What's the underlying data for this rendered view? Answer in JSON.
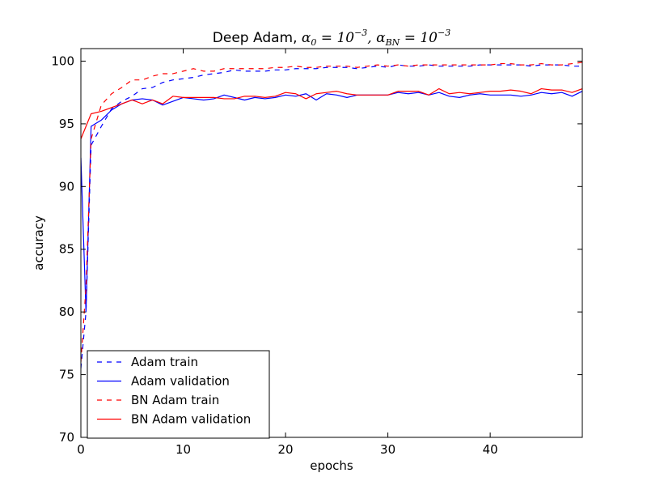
{
  "chart_data": {
    "type": "line",
    "title": {
      "text": "Deep Adam, ",
      "alpha_sym": "α",
      "sub0": "0",
      "eq1": " = 10",
      "sup1": "−3",
      "sep": ",  ",
      "alpha_sym2": "α",
      "subBN": "BN",
      "eq2": " = 10",
      "sup2": "−3"
    },
    "xlabel": "epochs",
    "ylabel": "accuracy",
    "xlim": [
      0,
      49
    ],
    "ylim": [
      70,
      101
    ],
    "xticks": [
      0,
      10,
      20,
      30,
      40
    ],
    "yticks": [
      70,
      75,
      80,
      85,
      90,
      95,
      100
    ],
    "grid": false,
    "legend_position": "bottom-left",
    "series": [
      {
        "name": "Adam train",
        "color": "#0000ff",
        "dash": "dashed",
        "x": [
          0,
          0.5,
          1,
          2,
          3,
          4,
          5,
          6,
          7,
          8,
          9,
          10,
          11,
          12,
          13,
          14,
          15,
          16,
          17,
          18,
          19,
          20,
          21,
          22,
          23,
          24,
          25,
          26,
          27,
          28,
          29,
          30,
          31,
          32,
          33,
          34,
          35,
          36,
          37,
          38,
          39,
          40,
          41,
          42,
          43,
          44,
          45,
          46,
          47,
          48,
          49
        ],
        "values": [
          75.5,
          80,
          93.3,
          94.8,
          96.2,
          96.8,
          97.2,
          97.8,
          97.9,
          98.3,
          98.5,
          98.6,
          98.7,
          98.9,
          99.0,
          99.1,
          99.3,
          99.2,
          99.2,
          99.2,
          99.3,
          99.3,
          99.4,
          99.4,
          99.4,
          99.5,
          99.5,
          99.5,
          99.4,
          99.5,
          99.6,
          99.5,
          99.7,
          99.6,
          99.6,
          99.7,
          99.6,
          99.6,
          99.6,
          99.6,
          99.7,
          99.7,
          99.7,
          99.7,
          99.7,
          99.6,
          99.7,
          99.7,
          99.7,
          99.6,
          99.6
        ]
      },
      {
        "name": "Adam validation",
        "color": "#0000ff",
        "dash": "solid",
        "x": [
          0,
          0.5,
          1,
          2,
          3,
          4,
          5,
          6,
          7,
          8,
          9,
          10,
          11,
          12,
          13,
          14,
          15,
          16,
          17,
          18,
          19,
          20,
          21,
          22,
          23,
          24,
          25,
          26,
          27,
          28,
          29,
          30,
          31,
          32,
          33,
          34,
          35,
          36,
          37,
          38,
          39,
          40,
          41,
          42,
          43,
          44,
          45,
          46,
          47,
          48,
          49
        ],
        "values": [
          92.3,
          80,
          94.8,
          95.3,
          96.1,
          96.6,
          96.9,
          97.0,
          96.9,
          96.5,
          96.8,
          97.1,
          97.0,
          96.9,
          97.0,
          97.3,
          97.1,
          96.9,
          97.1,
          97.0,
          97.1,
          97.3,
          97.2,
          97.4,
          96.9,
          97.4,
          97.3,
          97.1,
          97.3,
          97.3,
          97.3,
          97.3,
          97.5,
          97.4,
          97.5,
          97.3,
          97.5,
          97.2,
          97.1,
          97.3,
          97.4,
          97.3,
          97.3,
          97.3,
          97.2,
          97.3,
          97.5,
          97.4,
          97.5,
          97.2,
          97.6
        ]
      },
      {
        "name": "BN Adam train",
        "color": "#ff0000",
        "dash": "dashed",
        "x": [
          0,
          0.5,
          1,
          2,
          3,
          4,
          5,
          6,
          7,
          8,
          9,
          10,
          11,
          12,
          13,
          14,
          15,
          16,
          17,
          18,
          19,
          20,
          21,
          22,
          23,
          24,
          25,
          26,
          27,
          28,
          29,
          30,
          31,
          32,
          33,
          34,
          35,
          36,
          37,
          38,
          39,
          40,
          41,
          42,
          43,
          44,
          45,
          46,
          47,
          48,
          49
        ],
        "values": [
          76,
          82,
          93.8,
          96.5,
          97.4,
          97.9,
          98.5,
          98.5,
          98.8,
          99.0,
          99.0,
          99.2,
          99.4,
          99.2,
          99.2,
          99.4,
          99.4,
          99.4,
          99.4,
          99.4,
          99.5,
          99.5,
          99.6,
          99.5,
          99.5,
          99.6,
          99.6,
          99.6,
          99.5,
          99.6,
          99.7,
          99.6,
          99.7,
          99.6,
          99.7,
          99.7,
          99.7,
          99.7,
          99.7,
          99.7,
          99.7,
          99.7,
          99.8,
          99.8,
          99.7,
          99.7,
          99.8,
          99.7,
          99.7,
          99.8,
          99.9
        ]
      },
      {
        "name": "BN Adam validation",
        "color": "#ff0000",
        "dash": "solid",
        "x": [
          0,
          0.5,
          1,
          2,
          3,
          4,
          5,
          6,
          7,
          8,
          9,
          10,
          11,
          12,
          13,
          14,
          15,
          16,
          17,
          18,
          19,
          20,
          21,
          22,
          23,
          24,
          25,
          26,
          27,
          28,
          29,
          30,
          31,
          32,
          33,
          34,
          35,
          36,
          37,
          38,
          39,
          40,
          41,
          42,
          43,
          44,
          45,
          46,
          47,
          48,
          49
        ],
        "values": [
          93.8,
          94.8,
          95.8,
          96.0,
          96.3,
          96.6,
          96.9,
          96.6,
          96.9,
          96.6,
          97.2,
          97.1,
          97.1,
          97.1,
          97.1,
          97.0,
          97.0,
          97.2,
          97.2,
          97.1,
          97.2,
          97.5,
          97.4,
          97.0,
          97.4,
          97.5,
          97.6,
          97.4,
          97.3,
          97.3,
          97.3,
          97.3,
          97.6,
          97.6,
          97.6,
          97.3,
          97.8,
          97.4,
          97.5,
          97.4,
          97.5,
          97.6,
          97.6,
          97.7,
          97.6,
          97.4,
          97.8,
          97.7,
          97.7,
          97.5,
          97.8
        ]
      }
    ]
  }
}
